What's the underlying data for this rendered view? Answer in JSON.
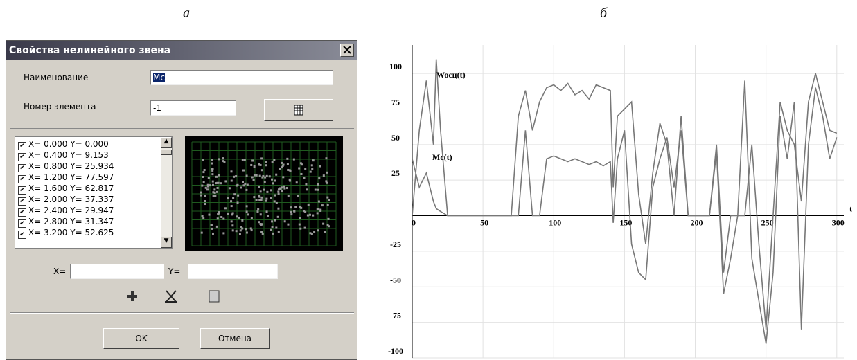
{
  "panel_labels": [
    "а",
    "б"
  ],
  "dialog": {
    "title": "Свойства нелинейного звена",
    "name_label": "Наименование",
    "name_value": "Mc",
    "number_label": "Номер элемента",
    "number_value": "-1",
    "points": [
      "X= 0.000  Y= 0.000",
      "X= 0.400  Y= 9.153",
      "X= 0.800  Y= 25.934",
      "X= 1.200  Y= 77.597",
      "X= 1.600  Y= 62.817",
      "X= 2.000  Y= 37.337",
      "X= 2.400  Y= 29.947",
      "X= 2.800  Y= 31.347",
      "X= 3.200  Y= 52.625"
    ],
    "x_label": "X=",
    "y_label": "Y=",
    "ok": "OK",
    "cancel": "Отмена"
  },
  "chart_data": {
    "type": "line",
    "x_label": "t",
    "x": [
      0,
      5,
      10,
      15,
      17,
      20,
      25,
      70,
      75,
      80,
      85,
      90,
      95,
      100,
      105,
      110,
      115,
      120,
      125,
      130,
      135,
      140,
      142,
      145,
      150,
      155,
      160,
      165,
      170,
      175,
      180,
      185,
      190,
      195,
      200,
      210,
      215,
      220,
      225,
      230,
      235,
      240,
      245,
      250,
      255,
      260,
      265,
      270,
      275,
      280,
      285,
      290,
      295,
      300
    ],
    "series": [
      {
        "name": "Wocц(t)",
        "color": "#777777",
        "values": [
          0,
          60,
          95,
          50,
          110,
          60,
          0,
          0,
          70,
          88,
          60,
          80,
          90,
          92,
          88,
          93,
          85,
          88,
          82,
          92,
          90,
          88,
          20,
          70,
          75,
          80,
          15,
          -20,
          30,
          65,
          50,
          0,
          70,
          0,
          0,
          0,
          50,
          -40,
          0,
          0,
          0,
          50,
          -20,
          -80,
          0,
          80,
          60,
          50,
          10,
          80,
          100,
          80,
          60,
          58
        ]
      },
      {
        "name": "Mc(t)",
        "color": "#777777",
        "values": [
          40,
          20,
          30,
          10,
          5,
          3,
          0,
          0,
          0,
          60,
          0,
          0,
          40,
          42,
          40,
          38,
          40,
          38,
          36,
          38,
          35,
          38,
          -5,
          40,
          60,
          -20,
          -40,
          -45,
          20,
          40,
          55,
          20,
          60,
          0,
          0,
          0,
          45,
          -55,
          -30,
          0,
          95,
          -30,
          -60,
          -90,
          -40,
          70,
          40,
          80,
          -80,
          50,
          90,
          70,
          40,
          55
        ]
      }
    ],
    "xlim": [
      0,
      305
    ],
    "ylim": [
      -100,
      120
    ],
    "xticks": [
      0,
      50,
      100,
      150,
      200,
      250,
      300
    ],
    "yticks": [
      -100,
      -75,
      -50,
      -25,
      25,
      50,
      75,
      100
    ],
    "grid": true
  }
}
